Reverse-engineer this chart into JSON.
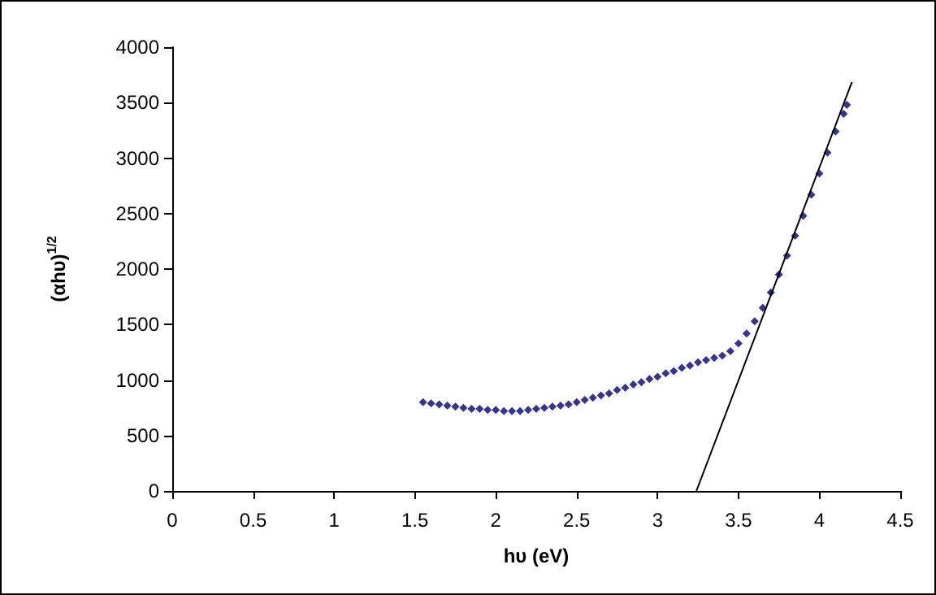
{
  "chart_data": {
    "type": "scatter",
    "xlabel": "hυ (eV)",
    "ylabel": "(αhυ)$^{1/2}$",
    "xlim": [
      0,
      4.5
    ],
    "xticks": [
      0,
      0.5,
      1,
      1.5,
      2,
      2.5,
      3,
      3.5,
      4,
      4.5
    ],
    "ylim": [
      0,
      4000
    ],
    "yticks": [
      0,
      500,
      1000,
      1500,
      2000,
      2500,
      3000,
      3500,
      4000
    ],
    "grid": false,
    "marker": "diamond",
    "series": [
      {
        "color": "#000080",
        "x": [
          1.55,
          1.6,
          1.65,
          1.7,
          1.75,
          1.8,
          1.85,
          1.9,
          1.95,
          2.0,
          2.05,
          2.1,
          2.15,
          2.2,
          2.25,
          2.3,
          2.35,
          2.4,
          2.45,
          2.5,
          2.55,
          2.6,
          2.65,
          2.7,
          2.75,
          2.8,
          2.85,
          2.9,
          2.95,
          3.0,
          3.05,
          3.1,
          3.15,
          3.2,
          3.25,
          3.3,
          3.35,
          3.4,
          3.45,
          3.5,
          3.55,
          3.6,
          3.65,
          3.7,
          3.75,
          3.8,
          3.85,
          3.9,
          3.95,
          4.0,
          4.05,
          4.1,
          4.15,
          4.17
        ],
        "values": [
          800,
          790,
          780,
          770,
          760,
          750,
          740,
          740,
          730,
          730,
          720,
          720,
          720,
          730,
          740,
          750,
          760,
          770,
          780,
          800,
          820,
          840,
          860,
          880,
          910,
          930,
          960,
          980,
          1010,
          1030,
          1060,
          1080,
          1110,
          1130,
          1160,
          1180,
          1200,
          1220,
          1260,
          1330,
          1420,
          1530,
          1650,
          1790,
          1950,
          2120,
          2300,
          2480,
          2670,
          2860,
          3050,
          3240,
          3400,
          3480
        ]
      },
      {
        "type": "line",
        "color": "#000000",
        "marker": "none",
        "x": [
          3.24,
          4.2
        ],
        "values": [
          0,
          3680
        ]
      }
    ]
  }
}
